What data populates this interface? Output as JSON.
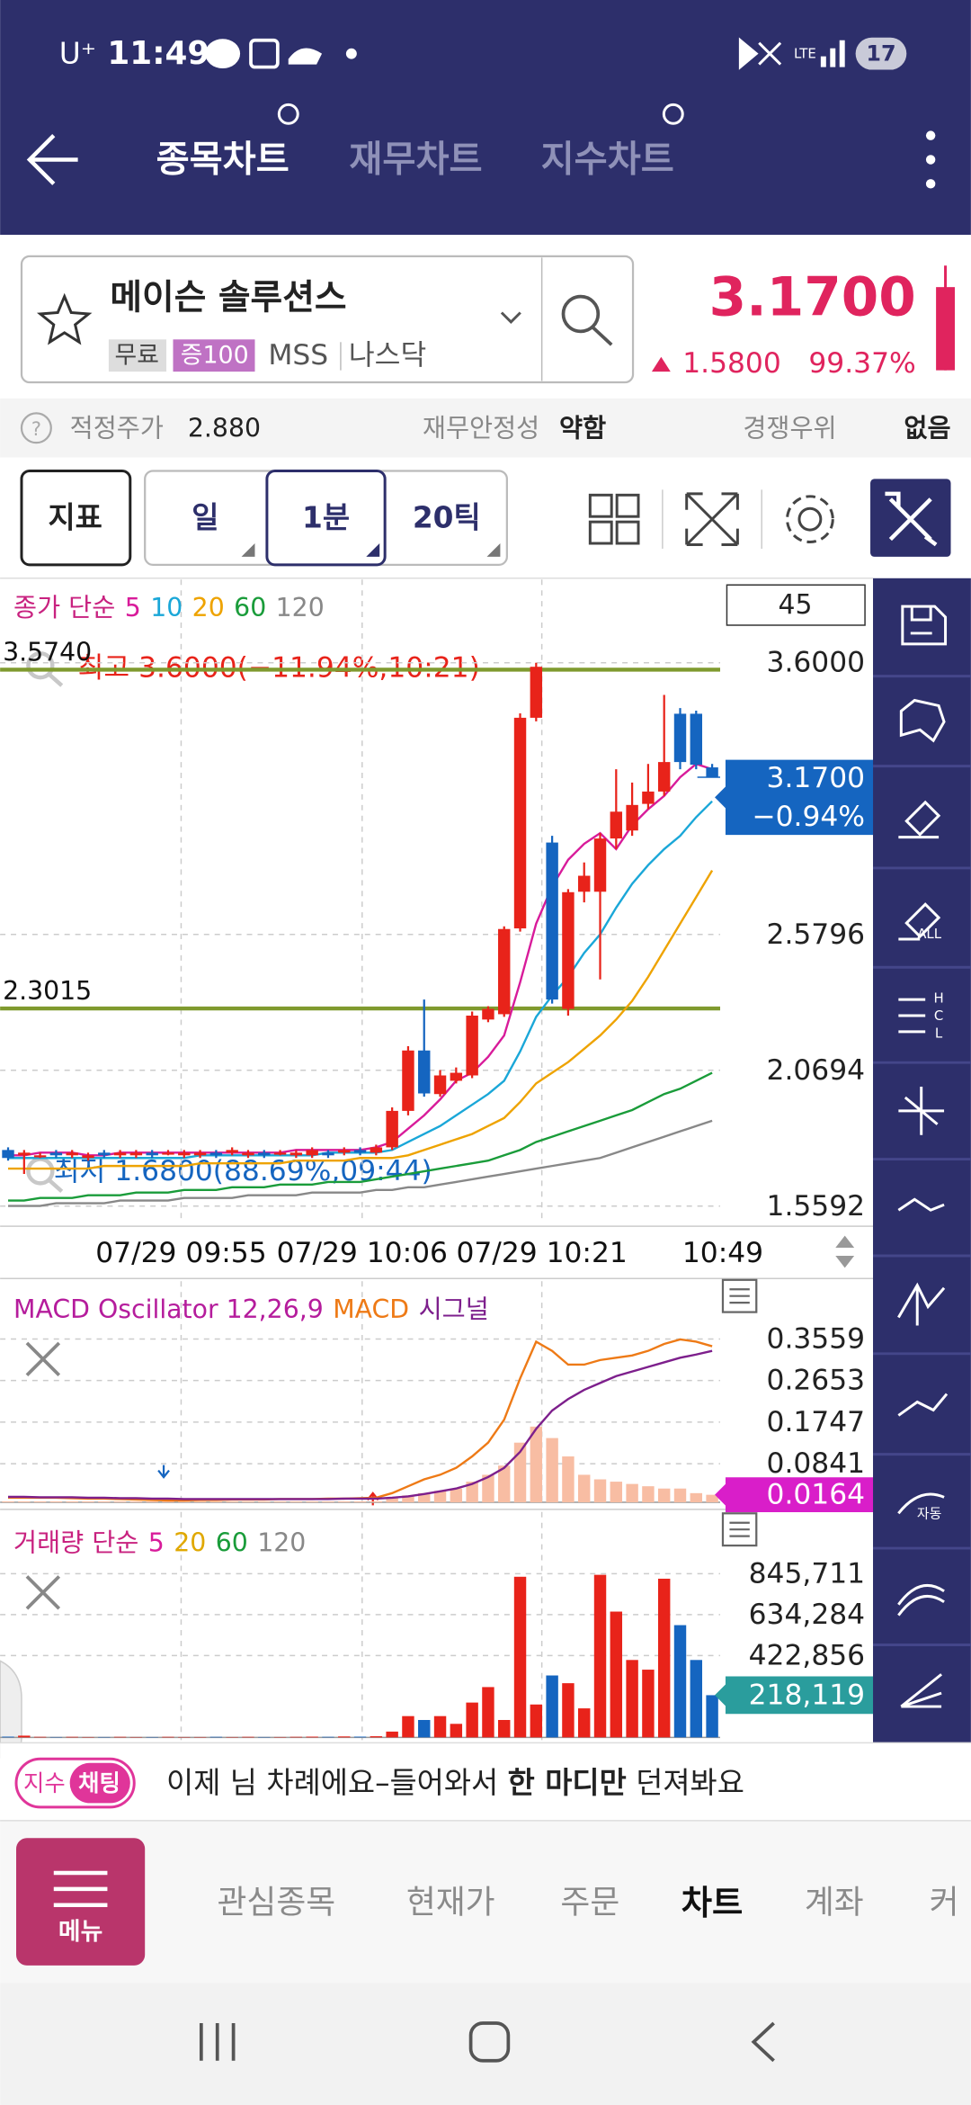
{
  "status_bar": {
    "carrier": "U⁺",
    "time": "11:49",
    "network": "LTE",
    "battery": "17"
  },
  "header": {
    "tabs": [
      "종목차트",
      "재무차트",
      "지수차트"
    ]
  },
  "stock": {
    "name": "메이슨 솔루션스",
    "badges": [
      "무료",
      "증100"
    ],
    "ticker": "MSS",
    "market": "나스닥",
    "price": "3.1700",
    "change": "1.5800",
    "change_pct": "99.37%"
  },
  "info_bar": {
    "fair_price_label": "적정주가",
    "fair_price": "2.880",
    "stability_label": "재무안정성",
    "stability": "약함",
    "competitive_label": "경쟁우위",
    "competitive": "없음"
  },
  "toolbar": {
    "indicator": "지표",
    "period": "일",
    "interval": "1분",
    "ticks": "20틱"
  },
  "tools": {
    "all": "ALL",
    "hcl": [
      "H",
      "C",
      "L"
    ],
    "auto": "자동"
  },
  "chart_data": [
    {
      "type": "candlestick",
      "title": "종가 단순",
      "title_color": "#c8217f",
      "visible_count": 45,
      "time_labels": [
        "07/29 09:55",
        "07/29 10:06",
        "07/29 10:21",
        "10:49"
      ],
      "ylim": [
        1.4937,
        3.8973
      ],
      "yticks": [
        {
          "value": 3.6,
          "label": "3.6000"
        },
        2.5796,
        2.0694,
        1.5592
      ],
      "levels": [
        {
          "value": 3.574,
          "label": "3.5740"
        },
        {
          "value": 2.3015,
          "label": "2.3015"
        }
      ],
      "high_label": "최고 3.6000(−11.94%,10:21)",
      "low_label": "최저 1.6800(88.69%,09:44)",
      "last": {
        "value": 3.17,
        "label": "3.1700",
        "change": "−0.94%"
      },
      "up_color": "#e8231a",
      "down_color": "#1565c0",
      "open": [
        1.77,
        1.75,
        1.75,
        1.76,
        1.75,
        1.74,
        1.76,
        1.75,
        1.75,
        1.76,
        1.76,
        1.75,
        1.75,
        1.76,
        1.76,
        1.75,
        1.76,
        1.76,
        1.75,
        1.75,
        1.76,
        1.76,
        1.77,
        1.76,
        1.78,
        1.9169,
        2.1437,
        1.98,
        2.03,
        2.05,
        2.26,
        2.28,
        2.6023,
        3.3934,
        2.9248,
        2.2999,
        2.74,
        2.74,
        2.94,
        2.97,
        3.07,
        3.1163,
        3.4085,
        3.4085,
        3.207
      ],
      "high": [
        1.78,
        1.77,
        1.76,
        1.77,
        1.77,
        1.76,
        1.77,
        1.77,
        1.77,
        1.77,
        1.77,
        1.77,
        1.77,
        1.77,
        1.78,
        1.77,
        1.77,
        1.77,
        1.77,
        1.78,
        1.77,
        1.78,
        1.78,
        1.79,
        1.93,
        2.16,
        2.3352,
        2.07,
        2.08,
        2.29,
        2.31,
        2.61,
        3.41,
        3.6,
        2.95,
        2.75,
        2.85,
        2.96,
        3.2,
        3.15,
        3.22,
        3.4791,
        3.43,
        3.42,
        3.22
      ],
      "low": [
        1.73,
        1.68,
        1.74,
        1.74,
        1.74,
        1.73,
        1.74,
        1.74,
        1.74,
        1.74,
        1.75,
        1.74,
        1.74,
        1.74,
        1.75,
        1.74,
        1.74,
        1.75,
        1.74,
        1.74,
        1.74,
        1.75,
        1.75,
        1.75,
        1.77,
        1.9,
        1.97,
        1.97,
        2.02,
        2.04,
        2.25,
        2.27,
        2.59,
        3.38,
        2.32,
        2.2747,
        2.7,
        2.4108,
        2.9,
        2.95,
        3.05,
        3.1,
        3.2,
        3.2,
        3.1767
      ],
      "close": [
        1.74,
        1.76,
        1.75,
        1.75,
        1.76,
        1.75,
        1.75,
        1.76,
        1.76,
        1.75,
        1.76,
        1.76,
        1.76,
        1.75,
        1.77,
        1.76,
        1.75,
        1.76,
        1.76,
        1.77,
        1.75,
        1.77,
        1.76,
        1.78,
        1.9169,
        2.1437,
        1.9824,
        2.05,
        2.06,
        2.2747,
        2.3,
        2.6,
        3.3934,
        3.5849,
        2.3352,
        2.7383,
        2.8,
        2.9399,
        3.0407,
        3.0659,
        3.1163,
        3.2271,
        3.2271,
        3.217,
        3.17
      ],
      "series": [
        {
          "name": "5",
          "color": "#d81b9a",
          "values": [
            1.75,
            1.75,
            1.76,
            1.76,
            1.76,
            1.75,
            1.75,
            1.76,
            1.76,
            1.76,
            1.76,
            1.76,
            1.76,
            1.76,
            1.76,
            1.76,
            1.76,
            1.76,
            1.77,
            1.77,
            1.77,
            1.77,
            1.77,
            1.78,
            1.8,
            1.85,
            1.9,
            1.96,
            2.03,
            2.06,
            2.12,
            2.2,
            2.4,
            2.62,
            2.76,
            2.86,
            2.92,
            2.96,
            2.9,
            2.99,
            3.05,
            3.1,
            3.17,
            3.22,
            3.2
          ]
        },
        {
          "name": "10",
          "color": "#1aa7d8",
          "values": [
            1.74,
            1.74,
            1.74,
            1.74,
            1.74,
            1.74,
            1.74,
            1.74,
            1.74,
            1.74,
            1.74,
            1.74,
            1.75,
            1.75,
            1.75,
            1.75,
            1.75,
            1.75,
            1.75,
            1.75,
            1.76,
            1.76,
            1.76,
            1.76,
            1.77,
            1.8,
            1.83,
            1.86,
            1.9,
            1.94,
            1.98,
            2.03,
            2.14,
            2.27,
            2.35,
            2.42,
            2.51,
            2.58,
            2.68,
            2.77,
            2.84,
            2.9,
            2.95,
            3.02,
            3.08
          ]
        },
        {
          "name": "20",
          "color": "#eea300",
          "values": [
            1.7,
            1.7,
            1.7,
            1.7,
            1.7,
            1.7,
            1.71,
            1.71,
            1.71,
            1.71,
            1.71,
            1.71,
            1.72,
            1.72,
            1.72,
            1.72,
            1.72,
            1.72,
            1.73,
            1.73,
            1.73,
            1.73,
            1.74,
            1.74,
            1.74,
            1.75,
            1.77,
            1.79,
            1.81,
            1.83,
            1.86,
            1.89,
            1.95,
            2.02,
            2.06,
            2.1,
            2.15,
            2.2,
            2.26,
            2.33,
            2.42,
            2.52,
            2.62,
            2.72,
            2.82
          ]
        },
        {
          "name": "60",
          "color": "#1a9c3a",
          "values": [
            1.58,
            1.58,
            1.59,
            1.59,
            1.59,
            1.6,
            1.6,
            1.6,
            1.61,
            1.61,
            1.61,
            1.62,
            1.62,
            1.62,
            1.63,
            1.63,
            1.63,
            1.64,
            1.64,
            1.64,
            1.65,
            1.65,
            1.65,
            1.66,
            1.67,
            1.68,
            1.69,
            1.7,
            1.71,
            1.72,
            1.73,
            1.75,
            1.77,
            1.8,
            1.82,
            1.84,
            1.86,
            1.88,
            1.9,
            1.92,
            1.95,
            1.98,
            2.0,
            2.03,
            2.06
          ]
        },
        {
          "name": "120",
          "color": "#888888",
          "values": [
            1.56,
            1.56,
            1.56,
            1.57,
            1.57,
            1.57,
            1.57,
            1.58,
            1.58,
            1.58,
            1.58,
            1.59,
            1.59,
            1.59,
            1.59,
            1.6,
            1.6,
            1.6,
            1.6,
            1.61,
            1.61,
            1.61,
            1.61,
            1.62,
            1.62,
            1.63,
            1.63,
            1.64,
            1.65,
            1.66,
            1.67,
            1.68,
            1.69,
            1.7,
            1.71,
            1.72,
            1.73,
            1.74,
            1.76,
            1.78,
            1.8,
            1.82,
            1.84,
            1.86,
            1.88
          ]
        }
      ]
    },
    {
      "type": "macd",
      "ylim": [
        -0.0065,
        0.394
      ],
      "yticks": [
        0.3559,
        0.2653,
        0.1747,
        0.0841
      ],
      "last": 0.0164,
      "last_color": "#d91ec9",
      "series": [
        {
          "name": "MACD Oscillator 12,26,9",
          "color": "#b51c9c",
          "fill": "#f8bda3",
          "values": [
            0.002,
            0.002,
            0.002,
            0.002,
            0.002,
            0.002,
            0.002,
            0.002,
            0.002,
            0.002,
            0.002,
            0.002,
            0.002,
            0.002,
            0.002,
            0.002,
            0.002,
            0.002,
            0.002,
            0.002,
            0.002,
            0.002,
            0.002,
            0.002,
            0.01,
            0.015,
            0.02,
            0.025,
            0.03,
            0.045,
            0.06,
            0.08,
            0.13,
            0.165,
            0.14,
            0.1,
            0.06,
            0.05,
            0.045,
            0.04,
            0.035,
            0.03,
            0.03,
            0.02,
            0.0164
          ]
        },
        {
          "name": "MACD",
          "color": "#ee7a16",
          "values": [
            0.01,
            0.01,
            0.01,
            0.01,
            0.009,
            0.008,
            0.008,
            0.007,
            0.006,
            0.005,
            0.004,
            0.004,
            0.005,
            0.005,
            0.006,
            0.006,
            0.006,
            0.007,
            0.007,
            0.007,
            0.008,
            0.008,
            0.009,
            0.01,
            0.02,
            0.035,
            0.05,
            0.06,
            0.075,
            0.1,
            0.13,
            0.18,
            0.27,
            0.35,
            0.33,
            0.3,
            0.3,
            0.31,
            0.315,
            0.32,
            0.33,
            0.345,
            0.355,
            0.35,
            0.34
          ]
        },
        {
          "name": "시그널",
          "color": "#7d1f8c",
          "values": [
            0.012,
            0.012,
            0.011,
            0.011,
            0.011,
            0.01,
            0.01,
            0.009,
            0.009,
            0.008,
            0.008,
            0.007,
            0.007,
            0.007,
            0.007,
            0.007,
            0.007,
            0.007,
            0.007,
            0.007,
            0.007,
            0.008,
            0.008,
            0.008,
            0.01,
            0.013,
            0.018,
            0.024,
            0.03,
            0.04,
            0.055,
            0.075,
            0.11,
            0.16,
            0.2,
            0.225,
            0.245,
            0.26,
            0.275,
            0.285,
            0.295,
            0.305,
            0.315,
            0.322,
            0.33
          ]
        }
      ]
    },
    {
      "type": "volume",
      "title": "거래량 단순",
      "title_color": "#c8217f",
      "ma": [
        {
          "name": "5",
          "color": "#d81b9a"
        },
        {
          "name": "20",
          "color": "#e0a800"
        },
        {
          "name": "60",
          "color": "#1a9c3a"
        },
        {
          "name": "120",
          "color": "#888888"
        }
      ],
      "ylim": [
        -13864,
        949691
      ],
      "yticks": [
        {
          "value": 845711,
          "label": "845,711"
        },
        {
          "value": 634284,
          "label": "634,284"
        },
        {
          "value": 422856,
          "label": "422,856"
        }
      ],
      "last": {
        "value": 218119,
        "label": "218,119"
      },
      "last_color": "#2a9d9d",
      "values": [
        4000,
        9000,
        3000,
        2000,
        3000,
        2000,
        2000,
        3000,
        2000,
        2000,
        3000,
        2000,
        2000,
        3000,
        2000,
        3000,
        2000,
        2000,
        3000,
        4000,
        3000,
        5000,
        4000,
        6000,
        30000,
        110000,
        90000,
        110000,
        70000,
        180000,
        260000,
        90000,
        830000,
        170000,
        320000,
        280000,
        150000,
        840000,
        650000,
        400000,
        350000,
        820000,
        580000,
        400000,
        218119
      ]
    }
  ],
  "chat": {
    "badge": "지수",
    "tag": "채팅",
    "message_start": "이제 님 차례에요–들어와서 ",
    "message_bold": "한 마디만",
    "message_end": " 던져봐요"
  },
  "nav": {
    "menu": "메뉴",
    "items": [
      "관심종목",
      "현재가",
      "주문",
      "차트",
      "계좌",
      "커"
    ]
  }
}
